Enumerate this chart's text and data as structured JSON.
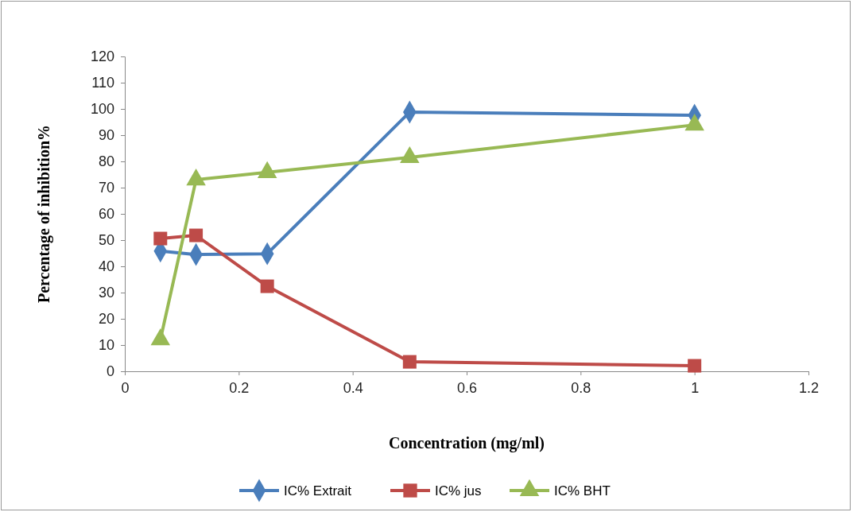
{
  "chart_data": {
    "type": "line",
    "xlabel": "Concentration (mg/ml)",
    "ylabel": "Percentage of inhibition%",
    "x": [
      0.0625,
      0.125,
      0.25,
      0.5,
      1
    ],
    "series": [
      {
        "name": "IC% Extrait",
        "color": "#4a7ebb",
        "marker": "diamond",
        "values": [
          45.8,
          44.5,
          44.8,
          98.8,
          97.6
        ]
      },
      {
        "name": "IC% jus",
        "color": "#be4b48",
        "marker": "square",
        "values": [
          50.6,
          51.8,
          32.4,
          3.6,
          2.1
        ]
      },
      {
        "name": "IC% BHT",
        "color": "#98b954",
        "marker": "triangle",
        "values": [
          12.1,
          73,
          75.8,
          81.5,
          93.9
        ]
      }
    ],
    "xlim": [
      0,
      1.2
    ],
    "xticks": [
      0,
      0.2,
      0.4,
      0.6,
      0.8,
      1,
      1.2
    ],
    "ylim": [
      0,
      120
    ],
    "yticks": [
      0,
      10,
      20,
      30,
      40,
      50,
      60,
      70,
      80,
      90,
      100,
      110,
      120
    ],
    "grid": false,
    "legend": "bottom",
    "line_style": "solid"
  }
}
